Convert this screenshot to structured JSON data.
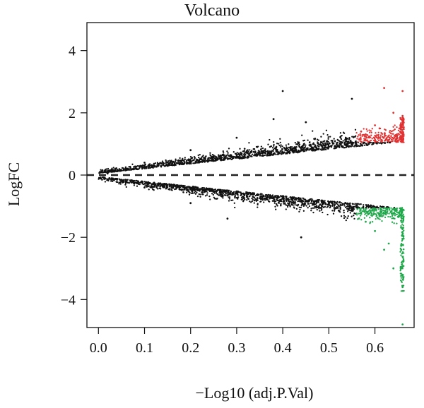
{
  "chart_data": {
    "type": "scatter",
    "title": "Volcano",
    "xlabel": "−Log10 (adj.P.Val)",
    "ylabel": "LogFC",
    "xlim": [
      -0.025,
      0.685
    ],
    "ylim": [
      -4.9,
      4.9
    ],
    "x_ticks": [
      0.0,
      0.1,
      0.2,
      0.3,
      0.4,
      0.5,
      0.6
    ],
    "x_tick_labels": [
      "0.0",
      "0.1",
      "0.2",
      "0.3",
      "0.4",
      "0.5",
      "0.6"
    ],
    "y_ticks": [
      4,
      2,
      0,
      -2,
      -4
    ],
    "y_tick_labels": [
      "4",
      "2",
      "0",
      "−2",
      "−4"
    ],
    "reference_line": {
      "y": 0,
      "style": "dashed"
    },
    "grid": false,
    "legend": "none",
    "series": [
      {
        "color": "#e03030",
        "points": [
          [
            0.57,
            1.4
          ],
          [
            0.6,
            1.6
          ],
          [
            0.62,
            2.8
          ],
          [
            0.64,
            2.0
          ],
          [
            0.66,
            2.7
          ],
          [
            0.66,
            1.9
          ],
          [
            0.58,
            1.3
          ],
          [
            0.61,
            1.5
          ]
        ]
      },
      {
        "color": "#1fa84a",
        "points": [
          [
            0.57,
            -1.2
          ],
          [
            0.6,
            -1.8
          ],
          [
            0.62,
            -2.4
          ],
          [
            0.64,
            -3.0
          ],
          [
            0.66,
            -3.6
          ],
          [
            0.66,
            -4.8
          ],
          [
            0.58,
            -1.5
          ],
          [
            0.63,
            -2.2
          ]
        ]
      },
      {
        "color": "#111111",
        "points": [
          [
            0.4,
            2.7
          ],
          [
            0.55,
            2.45
          ],
          [
            0.38,
            1.8
          ],
          [
            0.45,
            1.7
          ],
          [
            0.3,
            1.2
          ],
          [
            0.2,
            0.8
          ],
          [
            0.1,
            0.4
          ],
          [
            0.02,
            0.05
          ],
          [
            0.44,
            -2.0
          ],
          [
            0.28,
            -1.4
          ],
          [
            0.2,
            -0.9
          ],
          [
            0.1,
            -0.4
          ],
          [
            0.55,
            -1.1
          ],
          [
            0.5,
            -0.9
          ]
        ]
      }
    ]
  }
}
